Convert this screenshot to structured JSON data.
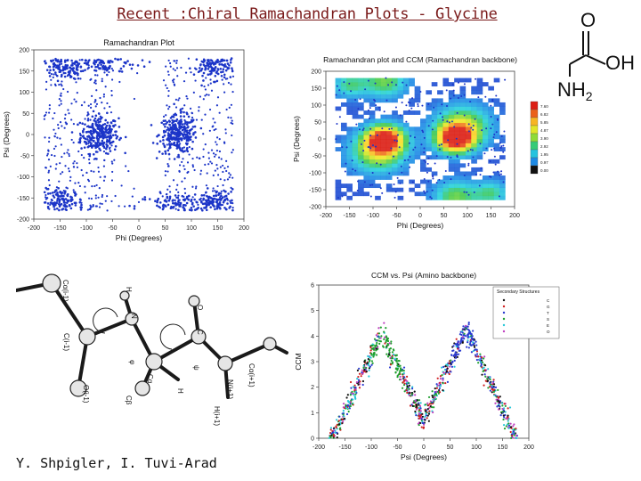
{
  "slide": {
    "title": "Recent :Chiral Ramachandran Plots - Glycine",
    "footer": "Y. Shpigler, I. Tuvi-Arad"
  },
  "molecule": {
    "o": "O",
    "oh": "OH",
    "nh2": "NH",
    "sub": "2"
  },
  "peptide_labels": [
    "H",
    "N",
    "O",
    "C",
    "Cα(i-1)",
    "C(i-1)",
    "Cα",
    "H",
    "Cβ",
    "φ",
    "ψ",
    "N(i+1)",
    "Cα(i+1)",
    "H(i+1)",
    "O(i-1)"
  ],
  "colorbar_labels": [
    "7.600",
    "6.825",
    "5.850",
    "4.875",
    "3.900",
    "2.925",
    "1.950",
    "0.975",
    "0.000"
  ],
  "colors": {
    "scatter_blue": "#1c35c8",
    "title_red": "#7a1a1a"
  },
  "chart_data": [
    {
      "type": "scatter",
      "title": "Ramachandran Plot",
      "xlabel": "Phi (Degrees)",
      "ylabel": "Psi (Degrees)",
      "xticks": [
        "-200",
        "-150",
        "-100",
        "-50",
        "0",
        "50",
        "100",
        "150",
        "200"
      ],
      "yticks": [
        "200",
        "150",
        "100",
        "50",
        "0",
        "-50",
        "-100",
        "-150",
        "-200"
      ],
      "xlim": [
        -200,
        200
      ],
      "ylim": [
        -200,
        200
      ],
      "clusters": [
        {
          "x": -75,
          "y": 0,
          "spread": [
            18,
            22
          ]
        },
        {
          "x": 75,
          "y": 0,
          "spread": [
            18,
            22
          ]
        },
        {
          "x": 75,
          "y": -170,
          "spread": [
            40,
            15
          ]
        },
        {
          "x": -75,
          "y": 170,
          "spread": [
            40,
            15
          ]
        },
        {
          "x": -145,
          "y": 160,
          "spread": [
            20,
            15
          ]
        },
        {
          "x": 145,
          "y": -160,
          "spread": [
            20,
            15
          ]
        },
        {
          "x": -145,
          "y": -160,
          "spread": [
            20,
            15
          ]
        },
        {
          "x": 145,
          "y": 160,
          "spread": [
            20,
            15
          ]
        }
      ]
    },
    {
      "type": "heatmap",
      "title": "Ramachandran plot and CCM (Ramachandran backbone)",
      "xlabel": "Phi (Degrees)",
      "ylabel": "Psi (Degrees)",
      "xticks": [
        "-200",
        "-150",
        "-100",
        "-50",
        "0",
        "50",
        "100",
        "150",
        "200"
      ],
      "yticks": [
        "200",
        "150",
        "100",
        "50",
        "0",
        "-50",
        "-100",
        "-150",
        "-200"
      ],
      "xlim": [
        -200,
        200
      ],
      "ylim": [
        -200,
        200
      ],
      "color_scale": [
        0.0,
        7.6
      ]
    },
    {
      "type": "scatter",
      "title": "CCM vs. Psi (Amino backbone)",
      "xlabel": "Psi (Degrees)",
      "ylabel": "CCM",
      "xticks": [
        "-200",
        "-150",
        "-100",
        "-50",
        "0",
        "50",
        "100",
        "150",
        "200"
      ],
      "yticks": [
        "6",
        "5",
        "4",
        "3",
        "2",
        "1",
        "0"
      ],
      "xlim": [
        -200,
        200
      ],
      "ylim": [
        0,
        6
      ],
      "legend_title": "Secondary Structures",
      "legend": [
        "C",
        "G",
        "T",
        "S",
        "E",
        "O"
      ],
      "legend_placement": "top-right",
      "peaks": [
        {
          "x": -80,
          "y": 4.1
        },
        {
          "x": 80,
          "y": 4.3
        }
      ]
    }
  ]
}
